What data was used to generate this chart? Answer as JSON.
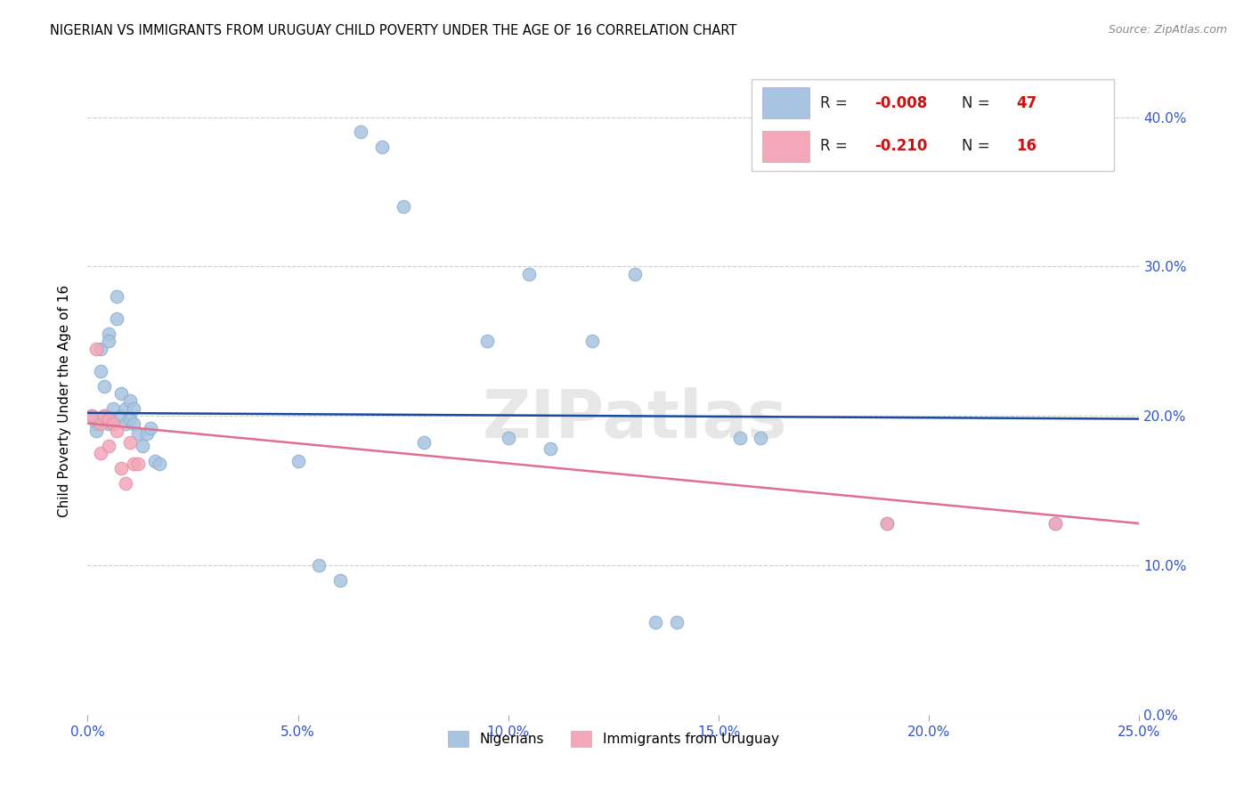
{
  "title": "NIGERIAN VS IMMIGRANTS FROM URUGUAY CHILD POVERTY UNDER THE AGE OF 16 CORRELATION CHART",
  "source": "Source: ZipAtlas.com",
  "ylabel": "Child Poverty Under the Age of 16",
  "xlim": [
    0.0,
    0.25
  ],
  "ylim": [
    0.0,
    0.42
  ],
  "nigerian_R": -0.008,
  "nigerian_N": 47,
  "uruguay_R": -0.21,
  "uruguay_N": 16,
  "nigerian_color": "#a8c4e0",
  "uruguay_color": "#f4a7b9",
  "nigerian_line_color": "#1a4a9e",
  "uruguay_line_color": "#e07090",
  "nigerian_x": [
    0.001,
    0.002,
    0.002,
    0.003,
    0.003,
    0.004,
    0.004,
    0.005,
    0.005,
    0.005,
    0.006,
    0.006,
    0.007,
    0.007,
    0.008,
    0.008,
    0.009,
    0.009,
    0.01,
    0.01,
    0.011,
    0.011,
    0.012,
    0.013,
    0.014,
    0.015,
    0.016,
    0.017,
    0.05,
    0.055,
    0.06,
    0.065,
    0.07,
    0.075,
    0.08,
    0.095,
    0.1,
    0.105,
    0.11,
    0.12,
    0.13,
    0.135,
    0.14,
    0.155,
    0.16,
    0.19,
    0.23
  ],
  "nigerian_y": [
    0.2,
    0.195,
    0.19,
    0.245,
    0.23,
    0.22,
    0.2,
    0.255,
    0.25,
    0.195,
    0.205,
    0.195,
    0.28,
    0.265,
    0.215,
    0.2,
    0.205,
    0.195,
    0.21,
    0.198,
    0.205,
    0.195,
    0.188,
    0.18,
    0.188,
    0.192,
    0.17,
    0.168,
    0.17,
    0.1,
    0.09,
    0.39,
    0.38,
    0.34,
    0.182,
    0.25,
    0.185,
    0.295,
    0.178,
    0.25,
    0.295,
    0.062,
    0.062,
    0.185,
    0.185,
    0.128,
    0.128
  ],
  "uruguay_x": [
    0.001,
    0.002,
    0.003,
    0.003,
    0.004,
    0.005,
    0.005,
    0.006,
    0.007,
    0.008,
    0.009,
    0.01,
    0.011,
    0.012,
    0.19,
    0.23
  ],
  "uruguay_y": [
    0.2,
    0.245,
    0.195,
    0.175,
    0.2,
    0.198,
    0.18,
    0.195,
    0.19,
    0.165,
    0.155,
    0.182,
    0.168,
    0.168,
    0.128,
    0.128
  ],
  "nigerian_line_x": [
    0.0,
    0.25
  ],
  "nigerian_line_y": [
    0.202,
    0.198
  ],
  "uruguay_line_x": [
    0.0,
    0.25
  ],
  "uruguay_line_y": [
    0.195,
    0.128
  ],
  "watermark": "ZIPatlas",
  "yticks": [
    0.0,
    0.1,
    0.2,
    0.3,
    0.4
  ],
  "ytick_labels": [
    "0.0%",
    "10.0%",
    "20.0%",
    "30.0%",
    "40.0%"
  ],
  "xticks": [
    0.0,
    0.05,
    0.1,
    0.15,
    0.2,
    0.25
  ],
  "xtick_labels": [
    "0.0%",
    "5.0%",
    "10.0%",
    "15.0%",
    "20.0%",
    "25.0%"
  ]
}
